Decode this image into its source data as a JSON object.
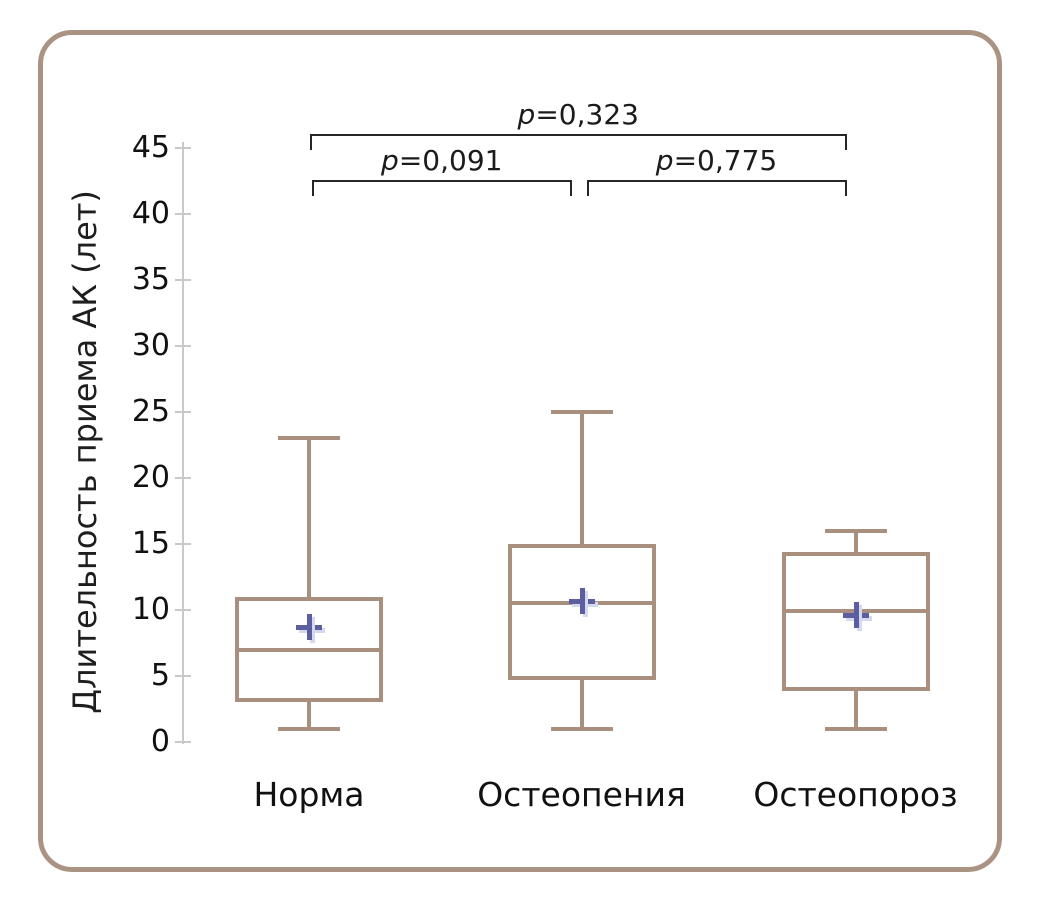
{
  "chart_data": {
    "type": "boxplot",
    "title": "",
    "ylabel": "Длительность приема АК (лет)",
    "xlabel": "",
    "ylim": [
      0,
      45
    ],
    "yticks": [
      0,
      5,
      10,
      15,
      20,
      25,
      30,
      35,
      40,
      45
    ],
    "grid": false,
    "categories": [
      "Норма",
      "Остеопения",
      "Остеопороз"
    ],
    "boxes": [
      {
        "category": "Норма",
        "min": 1,
        "q1": 3.0,
        "median": 7.0,
        "q3": 11.0,
        "max": 23,
        "mean": 8.7
      },
      {
        "category": "Остеопения",
        "min": 1,
        "q1": 4.7,
        "median": 10.5,
        "q3": 15.0,
        "max": 25,
        "mean": 10.7
      },
      {
        "category": "Остеопороз",
        "min": 1,
        "q1": 3.9,
        "median": 9.9,
        "q3": 14.4,
        "max": 16,
        "mean": 9.6
      }
    ],
    "annotations": [
      {
        "p_symbol": "p",
        "text": "=0,323",
        "label": "p=0,323",
        "from": "Норма",
        "to": "Остеопороз",
        "level": "top"
      },
      {
        "p_symbol": "p",
        "text": "=0,091",
        "label": "p=0,091",
        "from": "Норма",
        "to": "Остеопения",
        "level": "lower"
      },
      {
        "p_symbol": "p",
        "text": "=0,775",
        "label": "p=0,775",
        "from": "Остеопения",
        "to": "Остеопороз",
        "level": "lower"
      }
    ],
    "legend": null,
    "colors": {
      "box": "#a9907e",
      "mean_marker": "#5b5f9f",
      "mean_marker_shadow": "#d6d8ee",
      "axis": "#c9c9c9",
      "text": "#111111",
      "bracket": "#262626",
      "frame": "#ab9383",
      "background": "#ffffff"
    }
  }
}
